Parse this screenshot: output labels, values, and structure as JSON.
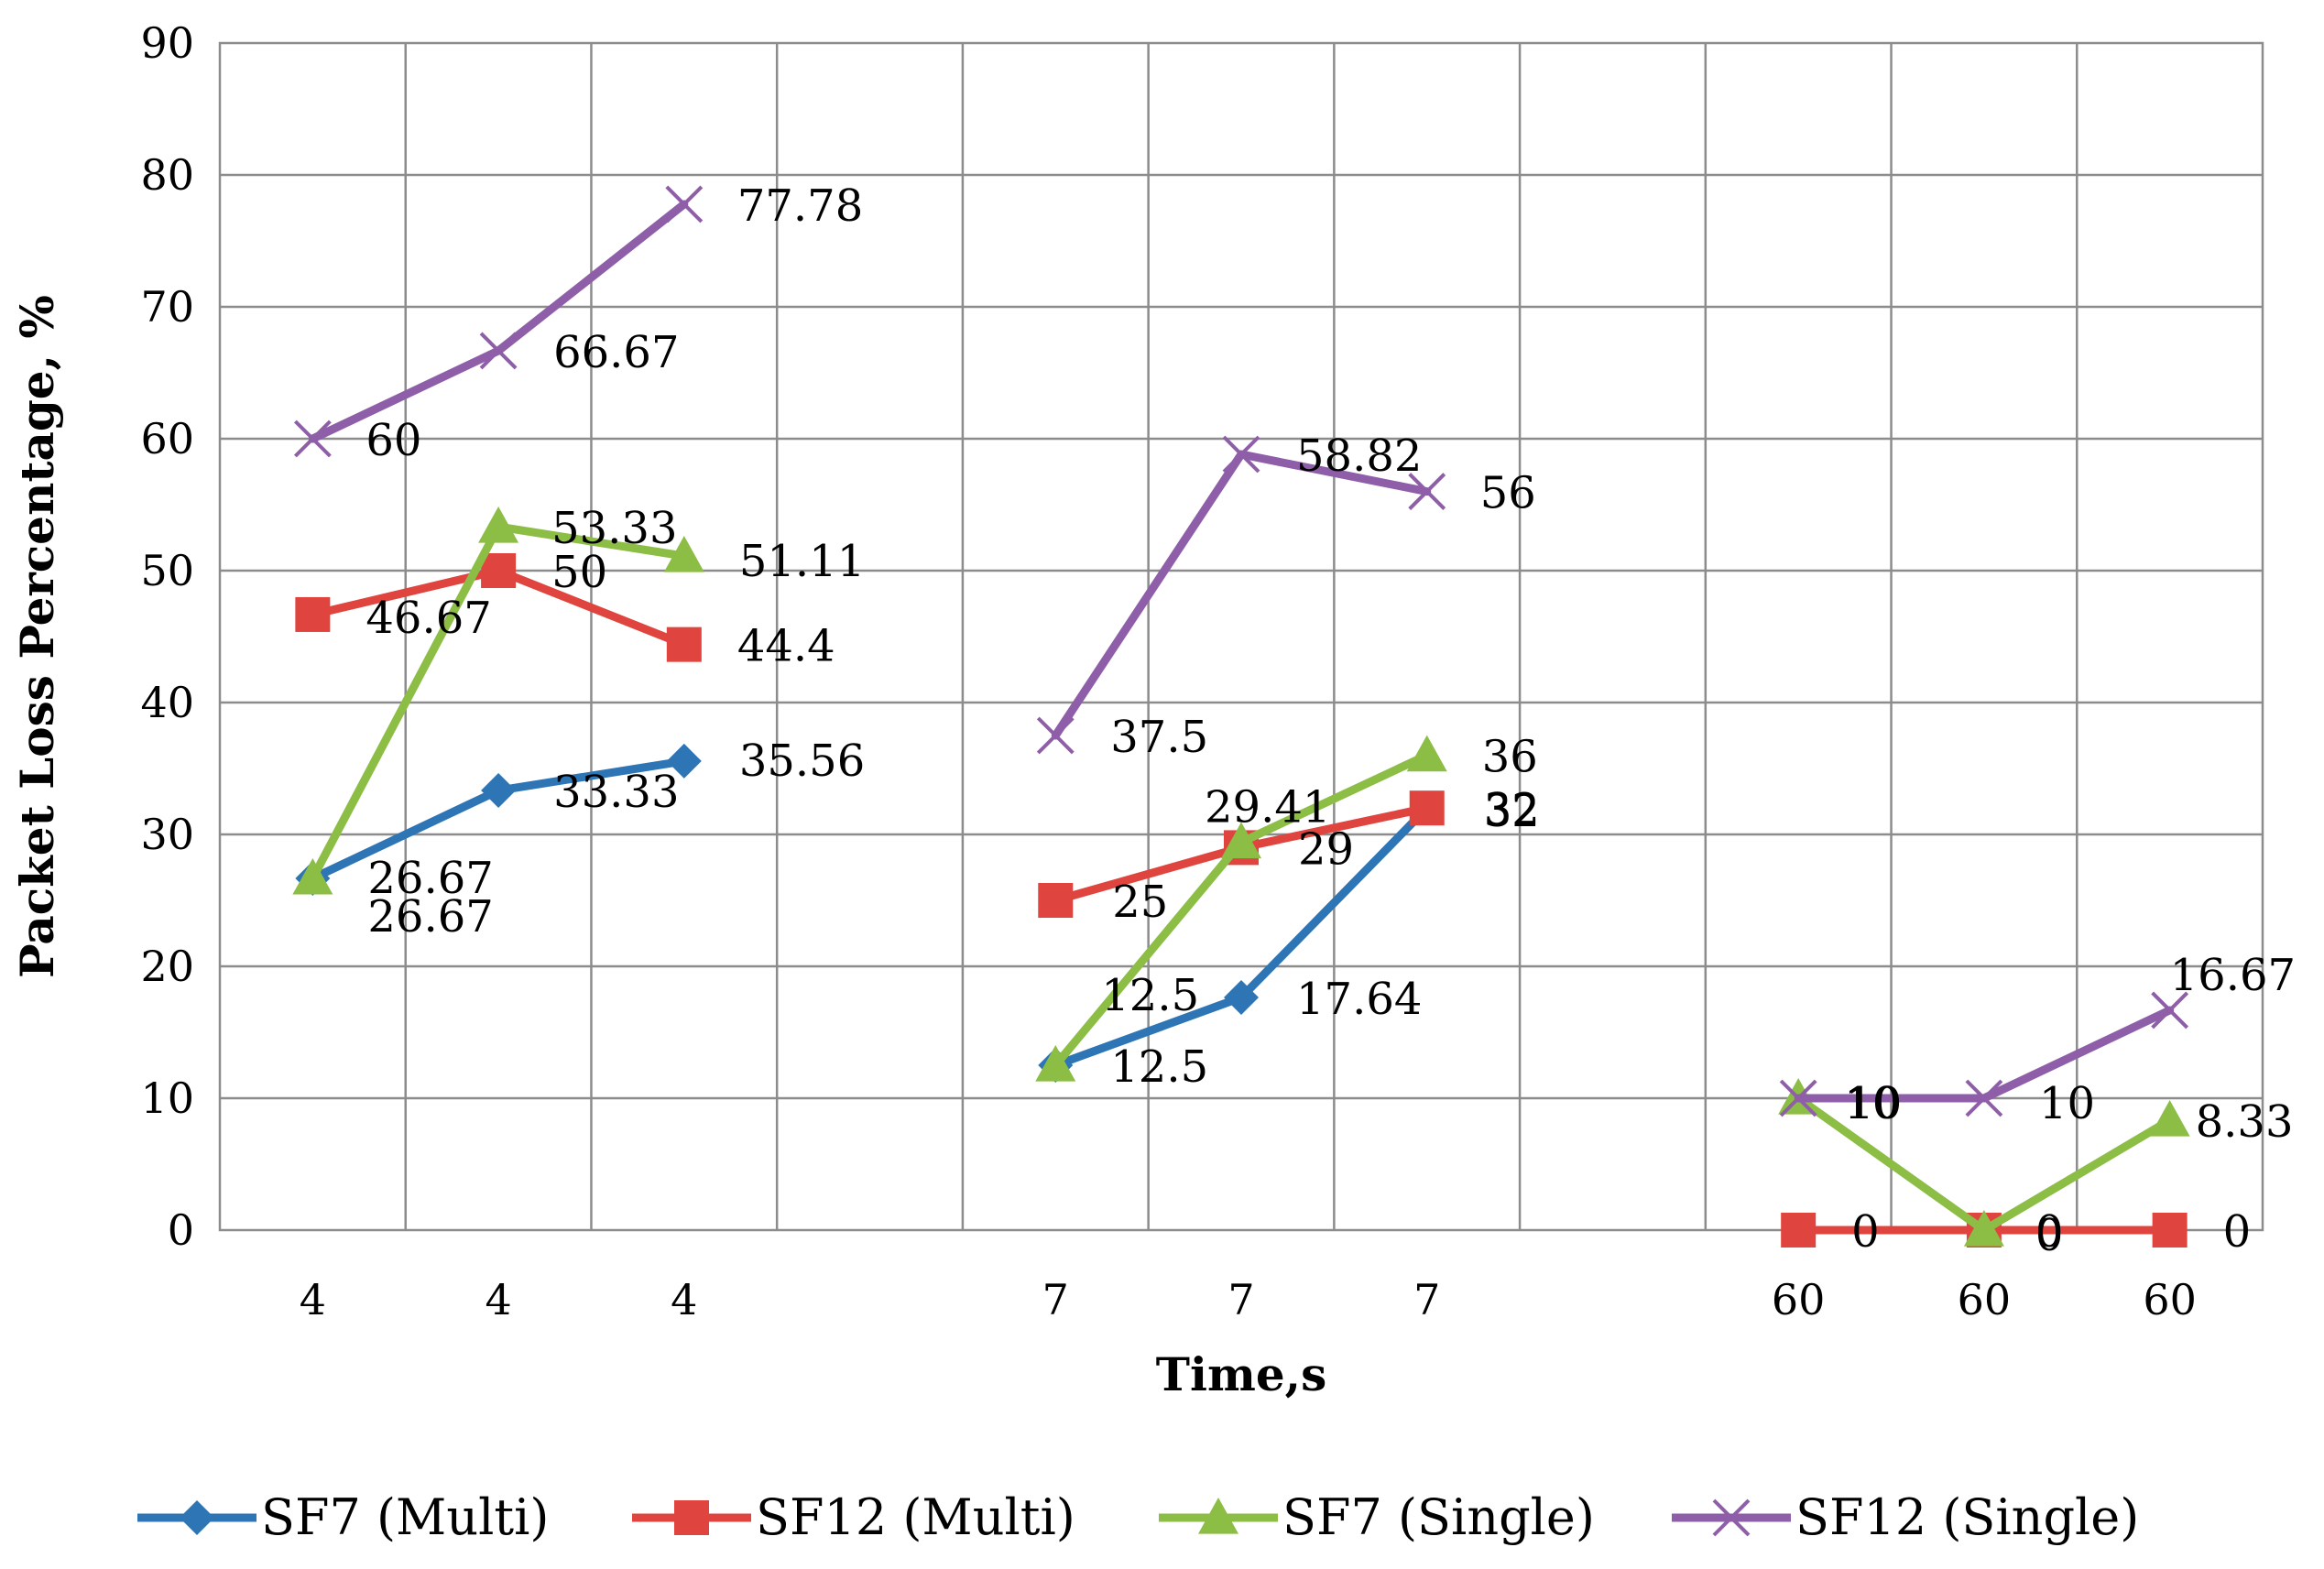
{
  "chart_data": {
    "type": "line",
    "title": "",
    "xlabel": "Time,s",
    "ylabel": "Packet Loss Percentage, %",
    "ylim": [
      0,
      90
    ],
    "yticks": [
      "0",
      "10",
      "20",
      "30",
      "40",
      "50",
      "60",
      "70",
      "80",
      "90"
    ],
    "grid": true,
    "legend_position": "bottom",
    "categories": [
      "4",
      "4",
      "4",
      "",
      "7",
      "7",
      "7",
      "",
      "60",
      "60",
      "60"
    ],
    "series": [
      {
        "name": "SF7 (Multi)",
        "color": "#2e75b6",
        "marker": "diamond",
        "values": [
          26.67,
          33.33,
          35.56,
          null,
          12.5,
          17.64,
          32,
          null,
          null,
          null,
          null
        ],
        "labels": [
          "26.67",
          "33.33",
          "35.56",
          null,
          "12.5",
          "17.64",
          "32",
          null,
          null,
          null,
          null
        ]
      },
      {
        "name": "SF12 (Multi)",
        "color": "#e0443e",
        "marker": "square",
        "values": [
          46.67,
          50,
          44.4,
          null,
          25,
          29,
          32,
          null,
          0,
          0,
          0
        ],
        "labels": [
          "46.67",
          "50",
          "44.4",
          null,
          "25",
          "29",
          "32",
          null,
          "0",
          "0",
          "0"
        ]
      },
      {
        "name": "SF7 (Single)",
        "color": "#8cbd45",
        "marker": "triangle",
        "values": [
          26.67,
          53.33,
          51.11,
          null,
          12.5,
          29.41,
          36,
          null,
          10,
          0,
          8.33
        ],
        "labels": [
          "26.67",
          "53.33",
          "51.11",
          null,
          "12.5",
          "29.41",
          "36",
          null,
          "10",
          "0",
          "8.33"
        ]
      },
      {
        "name": "SF12 (Single)",
        "color": "#8e5fa8",
        "marker": "x",
        "values": [
          60,
          66.67,
          77.78,
          null,
          37.5,
          58.82,
          56,
          null,
          10,
          10,
          16.67
        ],
        "labels": [
          "60",
          "66.67",
          "77.78",
          null,
          "37.5",
          "58.82",
          "56",
          null,
          "10",
          "10",
          "16.67"
        ]
      }
    ]
  }
}
